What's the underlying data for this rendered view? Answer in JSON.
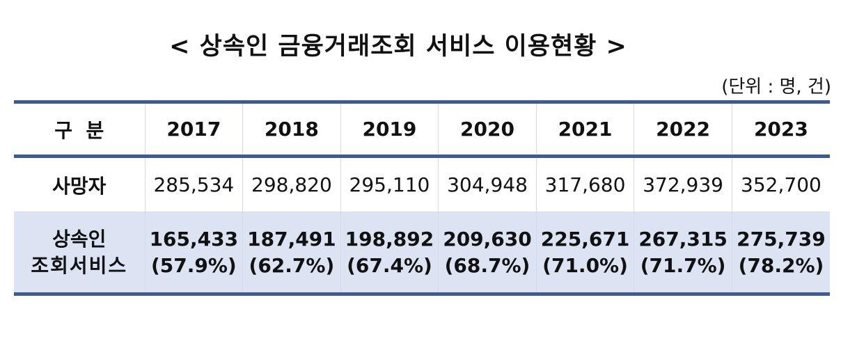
{
  "title": "< 상속인 금융거래조회 서비스 이용현황 >",
  "unit": "(단위 : 명, 건)",
  "table": {
    "header_label": "구  분",
    "years": [
      "2017",
      "2018",
      "2019",
      "2020",
      "2021",
      "2022",
      "2023"
    ],
    "deaths": {
      "label": "사망자",
      "values": [
        "285,534",
        "298,820",
        "295,110",
        "304,948",
        "317,680",
        "372,939",
        "352,700"
      ]
    },
    "service": {
      "label_line1": "상속인",
      "label_line2": "조회서비스",
      "values": [
        "165,433",
        "187,491",
        "198,892",
        "209,630",
        "225,671",
        "267,315",
        "275,739"
      ],
      "ratios": [
        "(57.9%)",
        "(62.7%)",
        "(67.4%)",
        "(68.7%)",
        "(71.0%)",
        "(71.7%)",
        "(78.2%)"
      ]
    }
  }
}
